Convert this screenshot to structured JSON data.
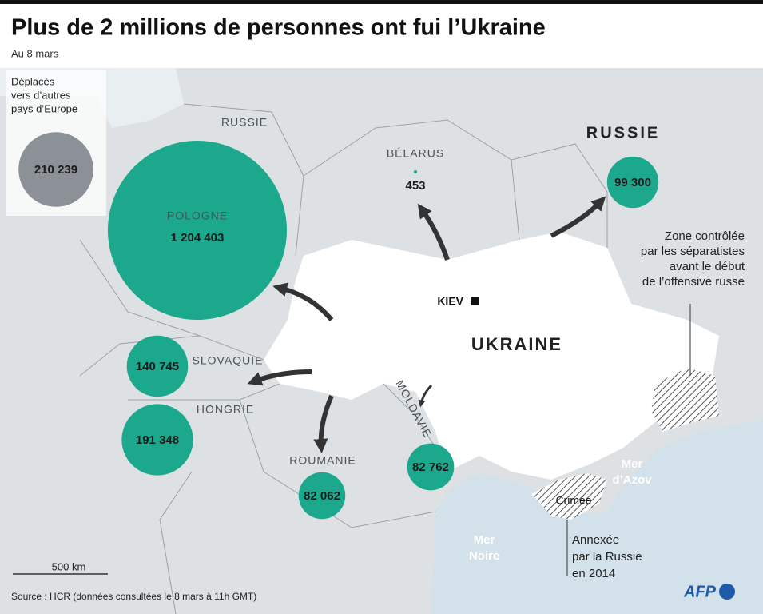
{
  "title": "Plus de 2 millions de personnes ont fui l’Ukraine",
  "subtitle": "Au 8 mars",
  "europe": {
    "lines": [
      "Déplacés",
      "vers d’autres",
      "pays d’Europe"
    ],
    "value": 210239,
    "label": "210 239",
    "color": "#8b9196"
  },
  "circle_color": "#1ba88c",
  "countries": [
    {
      "name": "POLOGNE",
      "value": 1204403,
      "label": "1 204 403"
    },
    {
      "name": "SLOVAQUIE",
      "value": 140745,
      "label": "140 745"
    },
    {
      "name": "HONGRIE",
      "value": 191348,
      "label": "191 348"
    },
    {
      "name": "ROUMANIE",
      "value": 82062,
      "label": "82 062"
    },
    {
      "name": "MOLDAVIE",
      "value": 82762,
      "label": "82 762"
    },
    {
      "name": "RUSSIE",
      "value": 99300,
      "label": "99 300"
    },
    {
      "name": "BÉLARUS",
      "value": 453,
      "label": "453"
    }
  ],
  "map_labels": {
    "kaliningrad": "RUSSIE",
    "ukraine": "UKRAINE",
    "kiev": "KIEV",
    "black_sea": [
      "Mer",
      "Noire"
    ],
    "azov": [
      "Mer",
      "d’Azov"
    ],
    "crimea": "Crimée"
  },
  "notes": {
    "separatists": [
      "Zone contrôlée",
      "par les séparatistes",
      "avant le début",
      "de l’offensive russe"
    ],
    "annexed": [
      "Annexée",
      "par la Russie",
      "en 2014"
    ]
  },
  "scale": "500 km",
  "source": "Source : HCR (données consultées le 8 mars à 11h GMT)",
  "logo": "AFP"
}
